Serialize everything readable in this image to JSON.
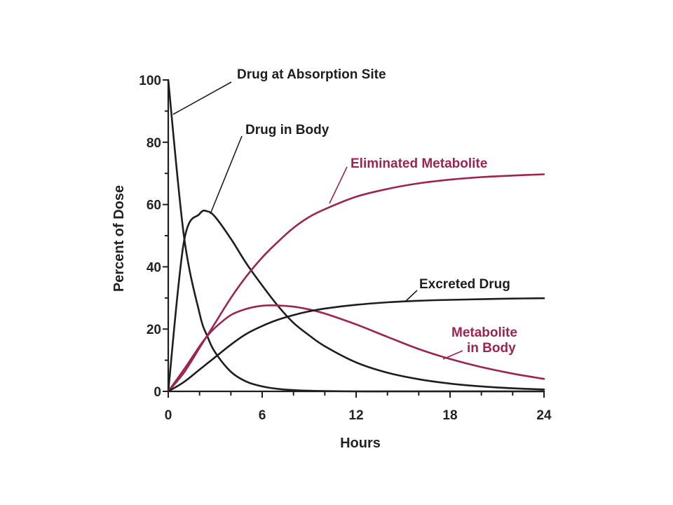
{
  "colors": {
    "black": "#1e1e1e",
    "maroon": "#9b2450"
  },
  "chart_data": {
    "type": "line",
    "xlabel": "Hours",
    "ylabel": "Percent of Dose",
    "xlim": [
      0,
      24
    ],
    "ylim": [
      0,
      100
    ],
    "xticks": [
      "0",
      "6",
      "12",
      "18",
      "24"
    ],
    "yticks": [
      "0",
      "20",
      "40",
      "60",
      "80",
      "100"
    ],
    "grid": false,
    "legend": "none",
    "x": [
      0,
      1,
      2,
      2.5,
      3,
      4,
      5,
      6,
      7,
      8,
      9,
      10,
      12,
      14,
      16,
      18,
      20,
      22,
      24
    ],
    "series": [
      {
        "name": "Drug at Absorption Site",
        "color": "#1e1e1e",
        "values": [
          100,
          50,
          25,
          17.7,
          12.5,
          6.3,
          3.1,
          1.6,
          0.8,
          0.4,
          0.2,
          0.1,
          0,
          0,
          0,
          0,
          0,
          0,
          0
        ]
      },
      {
        "name": "Drug in Body",
        "color": "#1e1e1e",
        "values": [
          0,
          48,
          57,
          57.8,
          56,
          49,
          41,
          34,
          27.5,
          22,
          18,
          14.5,
          9.3,
          6,
          3.9,
          2.5,
          1.6,
          1,
          0.6
        ]
      },
      {
        "name": "Eliminated Metabolite",
        "color": "#9b2450",
        "values": [
          0,
          6,
          14,
          18,
          22,
          30,
          37,
          43,
          48,
          52.5,
          56,
          58.5,
          62.5,
          65,
          66.8,
          68,
          68.8,
          69.3,
          69.7
        ]
      },
      {
        "name": "Metabolite in Body",
        "color": "#9b2450",
        "values": [
          0,
          7,
          14.5,
          17.8,
          20.5,
          24.5,
          26.5,
          27.5,
          27.6,
          27.2,
          26.3,
          25,
          21.5,
          17.5,
          13.6,
          10.4,
          7.8,
          5.7,
          4
        ]
      },
      {
        "name": "Excreted Drug",
        "color": "#1e1e1e",
        "values": [
          0,
          3,
          7,
          9,
          11,
          15,
          18.5,
          21,
          23,
          24.5,
          25.7,
          26.6,
          27.8,
          28.6,
          29.1,
          29.4,
          29.6,
          29.8,
          29.9
        ]
      }
    ],
    "annotations": [
      {
        "text": "Drug at Absorption Site",
        "color": "#1e1e1e",
        "series": 0
      },
      {
        "text": "Drug in Body",
        "color": "#1e1e1e",
        "series": 1
      },
      {
        "text": "Eliminated Metabolite",
        "color": "#9b2450",
        "series": 2
      },
      {
        "text": "Excreted Drug",
        "color": "#1e1e1e",
        "series": 4
      },
      {
        "text": "Metabolite",
        "color": "#9b2450",
        "series": 3
      },
      {
        "text": "in Body",
        "color": "#9b2450",
        "series": 3
      }
    ]
  }
}
